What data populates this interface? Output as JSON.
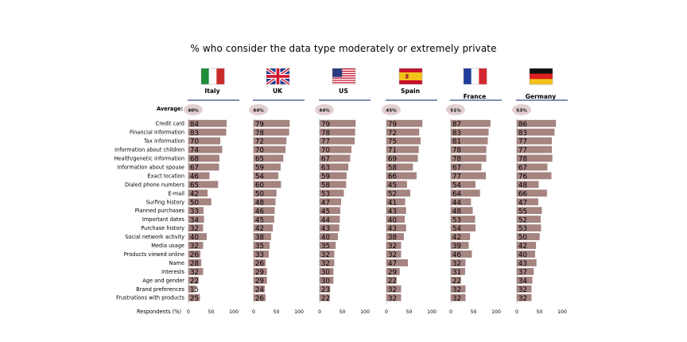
{
  "title": "% who consider the data type moderately or extremely private",
  "average_label": "Average:",
  "respondents_label": "Respondents (%)",
  "colors": {
    "bar": "#a68480",
    "bar_edge": "#8a6a66",
    "underline": "#5a6f95",
    "pill": "#e3cfd1"
  },
  "chart_data": {
    "type": "bar",
    "orientation": "horizontal",
    "title": "% who consider the data type moderately or extremely private",
    "xlabel": "Respondents (%)",
    "xlim": [
      0,
      100
    ],
    "xticks": [
      0,
      50,
      100
    ],
    "categories": [
      "Credit card",
      "Financial information",
      "Tax information",
      "Information about children",
      "Health/genetic information",
      "Information about spouse",
      "Exact location",
      "Dialed phone numbers",
      "E-mail",
      "Surfing history",
      "Planned purchases",
      "Important dates",
      "Purchase history",
      "Social network activity",
      "Media usage",
      "Products viewed online",
      "Name",
      "Interests",
      "Age and gender",
      "Brand preferences",
      "Frustrations with products"
    ],
    "series": [
      {
        "name": "Italy",
        "flag": "italy",
        "average": "40%",
        "values": [
          84,
          83,
          70,
          74,
          68,
          67,
          46,
          65,
          42,
          50,
          33,
          34,
          32,
          40,
          32,
          26,
          28,
          32,
          22,
          15,
          25
        ]
      },
      {
        "name": "UK",
        "flag": "uk",
        "average": "44%",
        "values": [
          79,
          78,
          72,
          70,
          65,
          59,
          54,
          60,
          50,
          48,
          46,
          45,
          42,
          38,
          35,
          33,
          26,
          29,
          29,
          24,
          26
        ]
      },
      {
        "name": "US",
        "flag": "us",
        "average": "44%",
        "values": [
          79,
          78,
          77,
          70,
          67,
          63,
          59,
          58,
          53,
          47,
          45,
          44,
          43,
          40,
          35,
          32,
          32,
          30,
          30,
          23,
          22
        ]
      },
      {
        "name": "Spain",
        "flag": "spain",
        "average": "45%",
        "values": [
          79,
          72,
          75,
          71,
          69,
          58,
          66,
          45,
          52,
          41,
          43,
          40,
          43,
          38,
          32,
          32,
          47,
          29,
          22,
          32,
          32
        ]
      },
      {
        "name": "France",
        "flag": "france",
        "average": "51%",
        "values": [
          87,
          83,
          81,
          78,
          78,
          67,
          77,
          54,
          64,
          44,
          48,
          53,
          54,
          42,
          39,
          46,
          32,
          31,
          22,
          32,
          32
        ]
      },
      {
        "name": "Germany",
        "flag": "germany",
        "average": "53%",
        "values": [
          86,
          83,
          77,
          77,
          78,
          67,
          76,
          48,
          66,
          47,
          55,
          52,
          53,
          50,
          42,
          40,
          43,
          37,
          34,
          32,
          32
        ]
      }
    ]
  }
}
